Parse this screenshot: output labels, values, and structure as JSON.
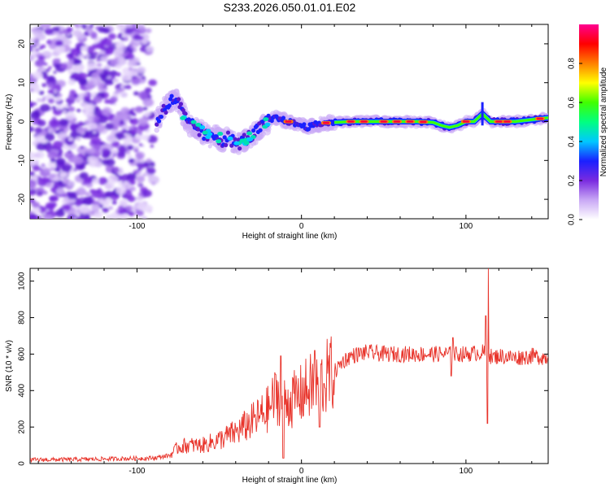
{
  "title": "S233.2026.050.01.01.E02",
  "chart_data": [
    {
      "type": "heatmap",
      "name": "spectrogram",
      "xlabel": "Height of straight line (km)",
      "ylabel": "Frequency (Hz)",
      "xlim": [
        -165,
        150
      ],
      "ylim": [
        -25,
        25
      ],
      "xticks": [
        -100,
        0,
        100
      ],
      "yticks": [
        -20,
        -10,
        0,
        10,
        20
      ],
      "colorbar": {
        "label": "Normalized spectral amplitude",
        "range": [
          0,
          1
        ],
        "ticks": [
          "0.0",
          "0.2",
          "0.4",
          "0.6",
          "0.8"
        ],
        "colormap": [
          "#ffffff",
          "#c9a8f5",
          "#7a2be0",
          "#1a20ff",
          "#00c8ff",
          "#00ff80",
          "#40ff00",
          "#ffff00",
          "#ff8000",
          "#ff0000",
          "#ff0090"
        ]
      },
      "ridge": {
        "x": [
          -88,
          -84,
          -80,
          -76,
          -72,
          -68,
          -64,
          -60,
          -56,
          -52,
          -48,
          -44,
          -40,
          -36,
          -32,
          -28,
          -24,
          -20,
          -16,
          -12,
          -8,
          -4,
          0,
          4,
          8,
          12,
          16,
          20,
          30,
          40,
          50,
          60,
          70,
          80,
          85,
          90,
          95,
          100,
          105,
          110,
          115,
          120,
          130,
          140,
          150
        ],
        "y": [
          0,
          3,
          5,
          6,
          2,
          -1,
          -1.5,
          -3,
          -4,
          -3.5,
          -5,
          -4,
          -6,
          -5,
          -4,
          -3,
          -1,
          0,
          1,
          0.5,
          0,
          -0.5,
          -1,
          -1.5,
          -0.8,
          -0.5,
          -0.3,
          -0.2,
          0,
          0,
          0,
          0,
          0,
          -0.2,
          -1,
          -1.5,
          -1,
          0,
          0,
          2,
          0,
          0,
          0,
          0.5,
          1
        ]
      },
      "noise_region_x": [
        -165,
        -88
      ]
    },
    {
      "type": "line",
      "name": "snr",
      "xlabel": "Height of straight line (km)",
      "ylabel": "SNR (10 * v/v)",
      "xlim": [
        -165,
        150
      ],
      "ylim": [
        0,
        1070
      ],
      "xticks": [
        -100,
        0,
        100
      ],
      "yticks": [
        0,
        200,
        400,
        600,
        800,
        1000
      ],
      "color": "#e8332a",
      "series": [
        {
          "name": "SNR",
          "x": [
            -165,
            -140,
            -120,
            -100,
            -90,
            -80,
            -75,
            -70,
            -60,
            -50,
            -40,
            -35,
            -30,
            -25,
            -20,
            -15,
            -10,
            -5,
            0,
            5,
            10,
            15,
            20,
            25,
            30,
            35,
            40,
            50,
            60,
            70,
            80,
            90,
            100,
            110,
            114,
            116,
            120,
            130,
            140,
            150
          ],
          "y": [
            20,
            22,
            25,
            28,
            30,
            45,
            90,
            100,
            100,
            130,
            170,
            200,
            230,
            260,
            300,
            380,
            330,
            350,
            380,
            420,
            420,
            470,
            500,
            560,
            590,
            600,
            610,
            600,
            600,
            600,
            600,
            600,
            600,
            610,
            600,
            580,
            590,
            580,
            590,
            580
          ]
        }
      ],
      "spikes": [
        {
          "x": -12.5,
          "y": 590
        },
        {
          "x": -11,
          "y": 30
        },
        {
          "x": 8,
          "y": 620
        },
        {
          "x": 11,
          "y": 200
        },
        {
          "x": 92,
          "y": 690
        },
        {
          "x": 91,
          "y": 480
        },
        {
          "x": 113.5,
          "y": 1070
        },
        {
          "x": 113,
          "y": 220
        },
        {
          "x": 112,
          "y": 810
        }
      ]
    }
  ]
}
